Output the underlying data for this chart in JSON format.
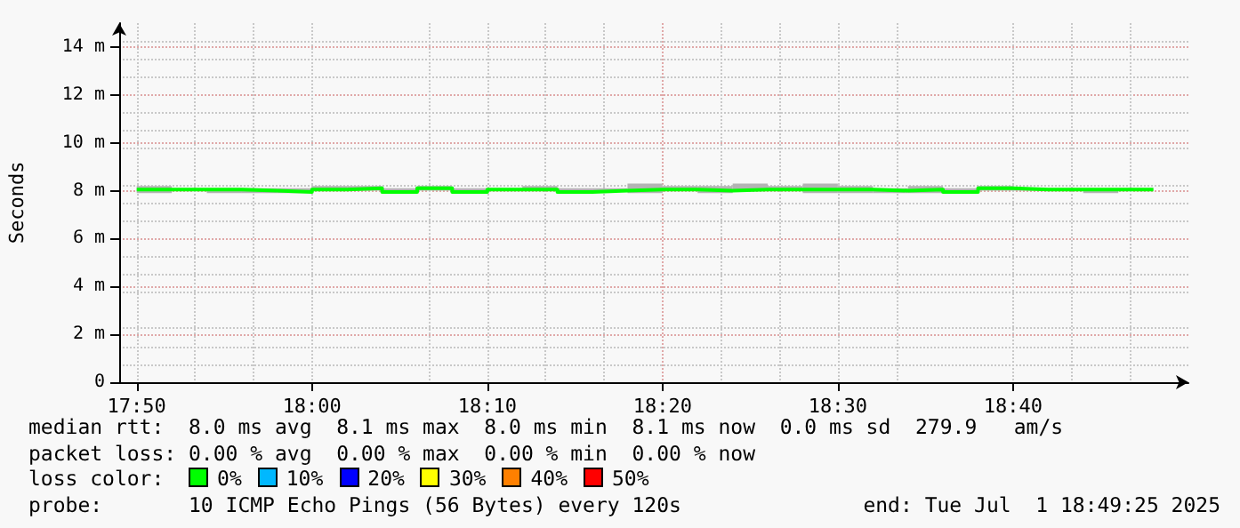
{
  "chart_data": {
    "type": "step",
    "ylabel": "Seconds",
    "x": [
      "2025-07-01T17:50",
      "2025-07-01T17:52",
      "2025-07-01T17:54",
      "2025-07-01T17:56",
      "2025-07-01T17:58",
      "2025-07-01T18:00",
      "2025-07-01T18:02",
      "2025-07-01T18:04",
      "2025-07-01T18:06",
      "2025-07-01T18:08",
      "2025-07-01T18:10",
      "2025-07-01T18:12",
      "2025-07-01T18:14",
      "2025-07-01T18:16",
      "2025-07-01T18:18",
      "2025-07-01T18:20",
      "2025-07-01T18:22",
      "2025-07-01T18:24",
      "2025-07-01T18:26",
      "2025-07-01T18:28",
      "2025-07-01T18:30",
      "2025-07-01T18:32",
      "2025-07-01T18:34",
      "2025-07-01T18:36",
      "2025-07-01T18:38",
      "2025-07-01T18:40",
      "2025-07-01T18:42",
      "2025-07-01T18:44",
      "2025-07-01T18:46",
      "2025-07-01T18:48"
    ],
    "series": [
      {
        "color": "#00ff00",
        "values": [
          8.05,
          8.05,
          8.05,
          8.0,
          7.95,
          8.05,
          8.1,
          7.95,
          8.1,
          7.95,
          8.05,
          8.05,
          7.95,
          8.0,
          8.05,
          8.05,
          8.0,
          8.05,
          8.05,
          8.05,
          8.05,
          8.0,
          8.05,
          7.95,
          8.1,
          8.05,
          8.05,
          8.05,
          8.05,
          8.05
        ],
        "lower": [
          7.9,
          8.0,
          7.9,
          7.9,
          7.9,
          8.0,
          8.0,
          7.9,
          8.0,
          7.9,
          8.0,
          8.0,
          7.9,
          8.0,
          7.9,
          8.0,
          7.9,
          8.0,
          8.0,
          7.9,
          7.9,
          7.9,
          7.9,
          7.9,
          8.0,
          8.0,
          8.0,
          7.9,
          8.0,
          null
        ],
        "upper": [
          8.2,
          8.1,
          8.1,
          8.1,
          8.1,
          8.2,
          8.2,
          8.1,
          8.2,
          8.1,
          8.1,
          8.2,
          8.1,
          8.1,
          8.3,
          8.2,
          8.2,
          8.3,
          8.2,
          8.3,
          8.2,
          8.1,
          8.2,
          8.1,
          8.2,
          8.1,
          8.1,
          8.1,
          8.1,
          null
        ]
      }
    ],
    "ylim": [
      0,
      15
    ],
    "yticks": [
      {
        "value": 0,
        "label": "0"
      },
      {
        "value": 2,
        "label": "2 m"
      },
      {
        "value": 4,
        "label": "4 m"
      },
      {
        "value": 6,
        "label": "6 m"
      },
      {
        "value": 8,
        "label": "8 m"
      },
      {
        "value": 10,
        "label": "10 m"
      },
      {
        "value": 12,
        "label": "12 m"
      },
      {
        "value": 14,
        "label": "14 m"
      }
    ],
    "xlim": [
      "2025-07-01T17:49",
      "2025-07-01T18:50"
    ],
    "xticks": [
      {
        "value": "2025-07-01T17:50",
        "label": "17:50"
      },
      {
        "value": "2025-07-01T18:00",
        "label": "18:00"
      },
      {
        "value": "2025-07-01T18:10",
        "label": "18:10"
      },
      {
        "value": "2025-07-01T18:20",
        "label": "18:20"
      },
      {
        "value": "2025-07-01T18:30",
        "label": "18:30"
      },
      {
        "value": "2025-07-01T18:40",
        "label": "18:40"
      }
    ],
    "grid": true,
    "marker": "none",
    "line_style": "solid",
    "annotations": [
      "median rtt:  8.0 ms avg  8.1 ms max  8.0 ms min  8.1 ms now  0.0 ms sd  279.9   am/s",
      "packet loss: 0.00 % avg  0.00 % max  0.00 % min  0.00 % now",
      "loss color:",
      "0%",
      "10%",
      "20%",
      "30%",
      "40%",
      "50%",
      "probe:       10 ICMP Echo Pings (56 Bytes) every 120s",
      "end: Tue Jul  1 18:49:25 2025"
    ]
  }
}
